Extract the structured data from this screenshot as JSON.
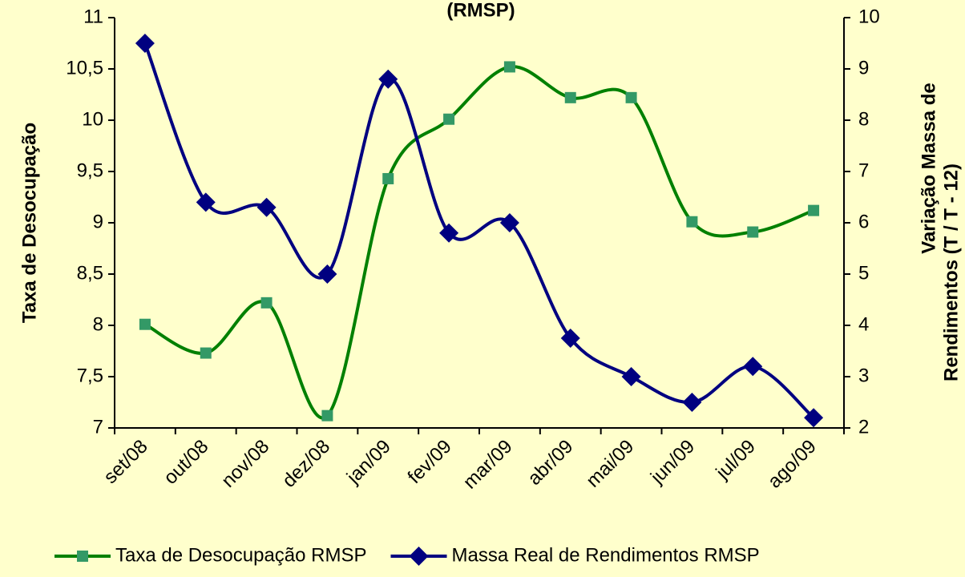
{
  "chart_data": {
    "type": "line",
    "title": "(RMSP)",
    "y_label": "Taxa de Desocupação",
    "y2_label": [
      "Variação Massa de",
      "Rendimentos (T / T - 12)"
    ],
    "categories": [
      "set/08",
      "out/08",
      "nov/08",
      "dez/08",
      "jan/09",
      "fev/09",
      "mar/09",
      "abr/09",
      "mai/09",
      "jun/09",
      "jul/09",
      "ago/09"
    ],
    "series": [
      {
        "name": "Taxa de Desocupação RMSP",
        "color": "#008000",
        "marker_color": "#339966",
        "marker": "square",
        "axis": "y",
        "values": [
          8.01,
          7.73,
          8.22,
          7.12,
          9.43,
          10.01,
          10.52,
          10.22,
          10.22,
          9.01,
          8.91,
          9.12
        ]
      },
      {
        "name": "Massa Real de Rendimentos RMSP",
        "color": "#000080",
        "marker_color": "#000080",
        "marker": "diamond",
        "axis": "y2",
        "values": [
          9.5,
          6.4,
          6.3,
          5.0,
          8.8,
          5.8,
          6.0,
          3.75,
          3.0,
          2.5,
          3.2,
          2.2
        ]
      }
    ],
    "ylim": [
      7,
      11
    ],
    "yticks": [
      7,
      {
        "value": 7.5,
        "label": "7,5"
      },
      8,
      {
        "value": 8.5,
        "label": "8,5"
      },
      9,
      {
        "value": 9.5,
        "label": "9,5"
      },
      10,
      {
        "value": 10.5,
        "label": "10,5"
      },
      11
    ],
    "y2lim": [
      2,
      10
    ],
    "y2ticks": [
      2,
      3,
      4,
      5,
      6,
      7,
      8,
      9,
      10
    ],
    "smooth": true,
    "legend": "bottom"
  }
}
